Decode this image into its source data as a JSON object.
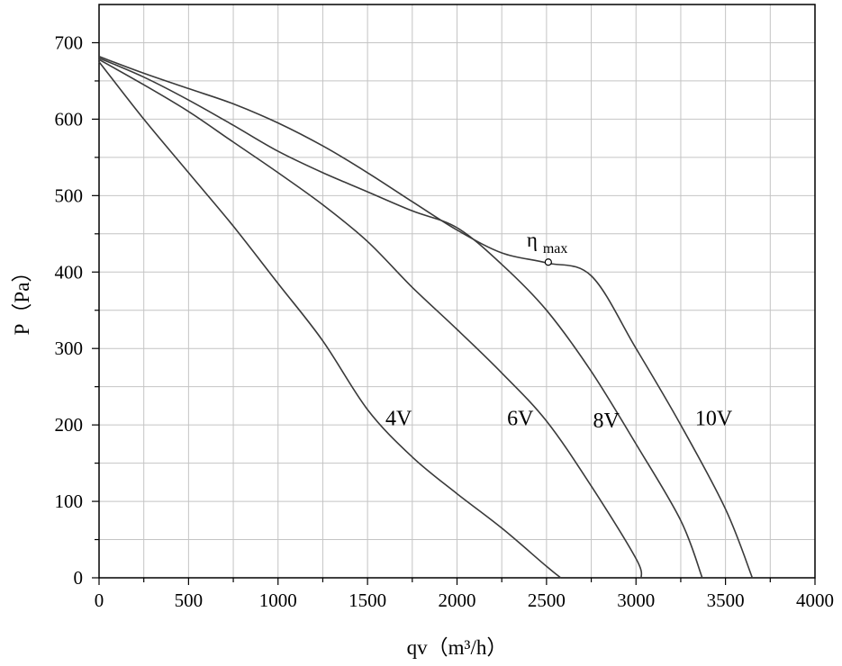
{
  "chart_data": {
    "type": "line",
    "title": "",
    "xlabel": "qv（m³/h）",
    "ylabel": "P（Pa）",
    "xlim": [
      0,
      4000
    ],
    "ylim": [
      0,
      750
    ],
    "x_ticks": [
      0,
      500,
      1000,
      1500,
      2000,
      2500,
      3000,
      3500,
      4000
    ],
    "y_ticks": [
      0,
      100,
      200,
      300,
      400,
      500,
      600,
      700
    ],
    "x_tick_labels": [
      "0",
      "500",
      "1000",
      "1500",
      "2000",
      "2500",
      "3000",
      "3500",
      "4000"
    ],
    "y_tick_labels": [
      "0",
      "100",
      "200",
      "300",
      "400",
      "500",
      "600",
      "700"
    ],
    "grid": true,
    "series": [
      {
        "name": "4V",
        "x": [
          0,
          250,
          500,
          750,
          1000,
          1250,
          1500,
          1750,
          2000,
          2250,
          2500,
          2580
        ],
        "y": [
          675,
          600,
          530,
          460,
          385,
          310,
          220,
          158,
          110,
          65,
          15,
          0
        ]
      },
      {
        "name": "6V",
        "x": [
          0,
          250,
          500,
          750,
          1000,
          1250,
          1500,
          1750,
          2000,
          2250,
          2500,
          2750,
          3000,
          3030
        ],
        "y": [
          678,
          645,
          610,
          570,
          530,
          488,
          440,
          380,
          325,
          268,
          205,
          120,
          25,
          0
        ]
      },
      {
        "name": "8V",
        "x": [
          0,
          250,
          500,
          750,
          1000,
          1250,
          1500,
          1750,
          2000,
          2250,
          2500,
          2750,
          3000,
          3250,
          3370
        ],
        "y": [
          680,
          655,
          625,
          592,
          558,
          530,
          505,
          480,
          458,
          410,
          350,
          270,
          175,
          75,
          0
        ]
      },
      {
        "name": "10V",
        "x": [
          0,
          250,
          500,
          750,
          1000,
          1250,
          1500,
          1750,
          2000,
          2250,
          2500,
          2750,
          3000,
          3250,
          3500,
          3650
        ],
        "y": [
          682,
          660,
          640,
          620,
          595,
          565,
          530,
          492,
          455,
          425,
          412,
          395,
          300,
          200,
          90,
          0
        ]
      }
    ],
    "curve_labels": [
      {
        "text": "4V",
        "x": 1600,
        "y": 210
      },
      {
        "text": "6V",
        "x": 2280,
        "y": 210
      },
      {
        "text": "8V",
        "x": 2760,
        "y": 207
      },
      {
        "text": "10V",
        "x": 3330,
        "y": 210
      }
    ],
    "annotations": [
      {
        "symbol": "η",
        "subscript": "max",
        "x": 2510,
        "y": 413
      }
    ]
  }
}
